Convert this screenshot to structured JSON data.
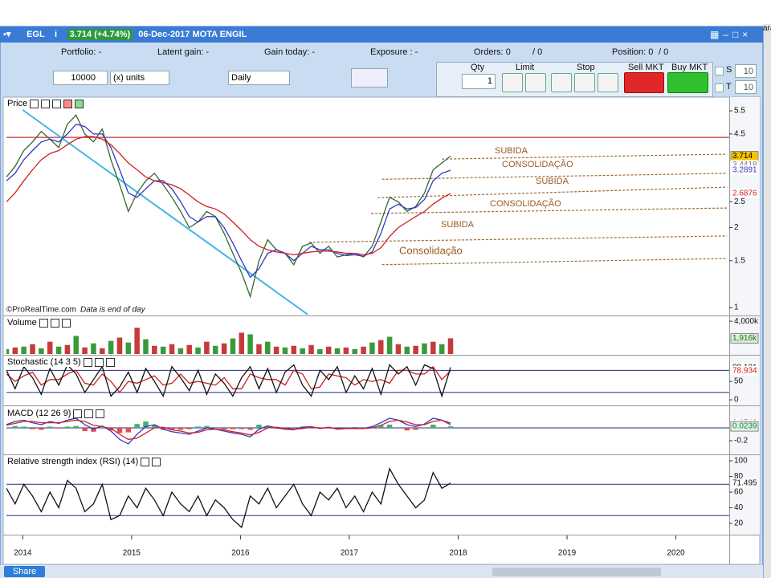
{
  "window": {
    "symbol": "EGL",
    "quote": "3.714 (+4.74%)",
    "title": "06-Dec-2017 MOTA ENGIL",
    "edge_text": "ara"
  },
  "account": {
    "portfolio": "Portfolio: -",
    "latent_gain": "Latent gain: -",
    "gain_today": "Gain today: -",
    "exposure": "Exposure : -",
    "orders": "Orders: 0",
    "orders_total": "/ 0",
    "position": "Position: 0",
    "position_total": "/ 0"
  },
  "toolbar": {
    "quantity": "10000",
    "unit": "(x) units",
    "period": "Daily",
    "qty_label": "Qty",
    "qty": "1",
    "limit": "Limit",
    "stop": "Stop",
    "sell": "Sell MKT",
    "buy": "Buy MKT",
    "s_label": "S",
    "s_value": "10",
    "t_label": "T",
    "t_value": "10"
  },
  "footer": {
    "share": "Share"
  },
  "chart_data": [
    {
      "type": "line",
      "title": "Price",
      "source": "©ProRealTime.com",
      "note": "Data is end of day",
      "log_scale": true,
      "xlim": [
        2013.85,
        2020.49
      ],
      "ylim": [
        0.94,
        6.15
      ],
      "yticks": [
        1,
        1.5,
        2,
        2.5,
        4.5,
        5.5
      ],
      "x": [
        2013.85,
        2013.93,
        2014.01,
        2014.09,
        2014.17,
        2014.25,
        2014.33,
        2014.41,
        2014.49,
        2014.57,
        2014.65,
        2014.73,
        2014.81,
        2014.89,
        2014.97,
        2015.05,
        2015.13,
        2015.21,
        2015.29,
        2015.37,
        2015.45,
        2015.53,
        2015.61,
        2015.69,
        2015.77,
        2015.85,
        2015.93,
        2016.01,
        2016.09,
        2016.17,
        2016.25,
        2016.33,
        2016.41,
        2016.49,
        2016.57,
        2016.65,
        2016.73,
        2016.81,
        2016.89,
        2016.97,
        2017.05,
        2017.13,
        2017.21,
        2017.29,
        2017.37,
        2017.45,
        2017.53,
        2017.61,
        2017.69,
        2017.77,
        2017.85,
        2017.93
      ],
      "series": [
        {
          "color": "#2e6b2e",
          "values": [
            3.1,
            3.4,
            3.9,
            4.2,
            4.6,
            4.3,
            4.0,
            4.9,
            5.3,
            4.5,
            4.2,
            4.7,
            3.6,
            2.9,
            2.3,
            2.7,
            3.0,
            3.2,
            2.9,
            2.6,
            2.3,
            2.0,
            2.1,
            2.3,
            2.2,
            1.9,
            1.6,
            1.35,
            1.1,
            1.5,
            1.8,
            1.65,
            1.6,
            1.45,
            1.7,
            1.75,
            1.6,
            1.7,
            1.55,
            1.58,
            1.6,
            1.55,
            1.7,
            2.1,
            2.6,
            2.5,
            2.3,
            2.4,
            2.7,
            3.3,
            3.5,
            3.714
          ]
        },
        {
          "color": "#3535c8",
          "values": [
            3.0,
            3.2,
            3.6,
            3.9,
            4.2,
            4.3,
            4.2,
            4.5,
            4.9,
            4.8,
            4.5,
            4.5,
            4.0,
            3.3,
            2.7,
            2.6,
            2.8,
            3.0,
            3.0,
            2.8,
            2.5,
            2.2,
            2.1,
            2.2,
            2.2,
            2.0,
            1.75,
            1.5,
            1.3,
            1.4,
            1.6,
            1.65,
            1.6,
            1.5,
            1.6,
            1.7,
            1.65,
            1.65,
            1.6,
            1.57,
            1.58,
            1.56,
            1.62,
            1.9,
            2.35,
            2.45,
            2.35,
            2.38,
            2.55,
            3.0,
            3.2,
            3.2891
          ]
        },
        {
          "color": "#d02020",
          "values": [
            2.5,
            2.7,
            3.0,
            3.3,
            3.6,
            3.8,
            3.9,
            4.1,
            4.3,
            4.4,
            4.4,
            4.3,
            4.1,
            3.8,
            3.5,
            3.3,
            3.1,
            3.0,
            2.95,
            2.9,
            2.8,
            2.65,
            2.5,
            2.4,
            2.35,
            2.25,
            2.1,
            1.95,
            1.8,
            1.7,
            1.65,
            1.62,
            1.6,
            1.58,
            1.6,
            1.62,
            1.63,
            1.63,
            1.62,
            1.6,
            1.6,
            1.58,
            1.6,
            1.68,
            1.85,
            2.0,
            2.1,
            2.2,
            2.3,
            2.45,
            2.58,
            2.6876
          ]
        }
      ],
      "hlines": [
        {
          "value": 4.37,
          "color": "#d03030"
        }
      ],
      "trendlines": [
        {
          "x": [
            2014.0,
            2016.62
          ],
          "y": [
            5.54,
            0.94
          ],
          "color": "#45b4e6",
          "style": "solid"
        },
        {
          "x": [
            2017.3,
            2020.47
          ],
          "y": [
            1.45,
            1.53
          ],
          "color": "#9a6a3a",
          "style": "dashed"
        },
        {
          "x": [
            2016.63,
            2020.47
          ],
          "y": [
            1.76,
            1.86
          ],
          "color": "#9a6a3a",
          "style": "dashed"
        },
        {
          "x": [
            2017.2,
            2020.47
          ],
          "y": [
            2.26,
            2.37
          ],
          "color": "#9a6a3a",
          "style": "dashed"
        },
        {
          "x": [
            2017.26,
            2020.47
          ],
          "y": [
            2.59,
            2.84
          ],
          "color": "#9a6a3a",
          "style": "dashed"
        },
        {
          "x": [
            2017.3,
            2020.47
          ],
          "y": [
            3.04,
            3.2
          ],
          "color": "#9a6a3a",
          "style": "dashed"
        },
        {
          "x": [
            2017.85,
            2020.47
          ],
          "y": [
            3.62,
            3.78
          ],
          "color": "#9a6a3a",
          "style": "dashed"
        }
      ],
      "annotations": [
        "SUBIDA",
        "CONSOLIDAÇÃO",
        "SUBIDA",
        "CONSOLIDAÇÃO",
        "SUBIDA",
        "Consolidação"
      ],
      "markers": [
        {
          "value": 3.714,
          "color": "#000000",
          "background": "#f5c400"
        },
        {
          "value": 3.4418,
          "color": "#777777"
        },
        {
          "value": 3.2891,
          "color": "#3535c8"
        },
        {
          "value": 2.6876,
          "color": "#d02020"
        }
      ]
    },
    {
      "type": "bar",
      "title": "Volume",
      "xlim": [
        2013.85,
        2020.49
      ],
      "ylim": [
        0,
        4500
      ],
      "yticks": [
        {
          "value": 4000,
          "label": "4,000k"
        }
      ],
      "x": [
        2013.85,
        2013.93,
        2014.01,
        2014.09,
        2014.17,
        2014.25,
        2014.33,
        2014.41,
        2014.49,
        2014.57,
        2014.65,
        2014.73,
        2014.81,
        2014.89,
        2014.97,
        2015.05,
        2015.13,
        2015.21,
        2015.29,
        2015.37,
        2015.45,
        2015.53,
        2015.61,
        2015.69,
        2015.77,
        2015.85,
        2015.93,
        2016.01,
        2016.09,
        2016.17,
        2016.25,
        2016.33,
        2016.41,
        2016.49,
        2016.57,
        2016.65,
        2016.73,
        2016.81,
        2016.89,
        2016.97,
        2017.05,
        2017.13,
        2017.21,
        2017.29,
        2017.37,
        2017.45,
        2017.53,
        2017.61,
        2017.69,
        2017.77,
        2017.85,
        2017.93
      ],
      "values": [
        600,
        800,
        900,
        1200,
        700,
        1500,
        900,
        1100,
        2200,
        800,
        1300,
        700,
        1600,
        2000,
        1400,
        3200,
        1800,
        1000,
        900,
        1200,
        700,
        1100,
        800,
        1500,
        1000,
        1300,
        1900,
        2600,
        2400,
        1200,
        1500,
        900,
        800,
        1000,
        700,
        1100,
        600,
        900,
        700,
        800,
        600,
        900,
        1400,
        1700,
        2100,
        1200,
        900,
        1000,
        1300,
        1500,
        1200,
        1916
      ],
      "colors": [
        "#3a9a3a",
        "#c83a3a"
      ],
      "markers": [
        {
          "value": 1916,
          "label": "1,916k",
          "color": "#2a6a2a",
          "background": "#d8f0d8"
        }
      ]
    },
    {
      "type": "line",
      "title": "Stochastic (14 3 5)",
      "xlim": [
        2013.85,
        2020.49
      ],
      "ylim": [
        -13,
        120
      ],
      "yticks": [
        0,
        50
      ],
      "levels": [
        20,
        80
      ],
      "x": [
        2013.85,
        2013.93,
        2014.01,
        2014.09,
        2014.17,
        2014.25,
        2014.33,
        2014.41,
        2014.49,
        2014.57,
        2014.65,
        2014.73,
        2014.81,
        2014.89,
        2014.97,
        2015.05,
        2015.13,
        2015.21,
        2015.29,
        2015.37,
        2015.45,
        2015.53,
        2015.61,
        2015.69,
        2015.77,
        2015.85,
        2015.93,
        2016.01,
        2016.09,
        2016.17,
        2016.25,
        2016.33,
        2016.41,
        2016.49,
        2016.57,
        2016.65,
        2016.73,
        2016.81,
        2016.89,
        2016.97,
        2017.05,
        2017.13,
        2017.21,
        2017.29,
        2017.37,
        2017.45,
        2017.53,
        2017.61,
        2017.69,
        2017.77,
        2017.85,
        2017.93
      ],
      "series": [
        {
          "color": "#d02020",
          "values": [
            70,
            50,
            65,
            75,
            40,
            55,
            55,
            70,
            80,
            45,
            40,
            70,
            50,
            20,
            50,
            45,
            55,
            65,
            40,
            45,
            70,
            45,
            50,
            45,
            40,
            60,
            30,
            30,
            70,
            60,
            55,
            55,
            40,
            80,
            70,
            30,
            35,
            70,
            65,
            60,
            40,
            55,
            50,
            55,
            45,
            80,
            80,
            70,
            70,
            90,
            55,
            78.934
          ]
        },
        {
          "color": "#111111",
          "values": [
            80,
            30,
            90,
            60,
            15,
            85,
            40,
            95,
            70,
            20,
            55,
            90,
            10,
            35,
            75,
            20,
            85,
            50,
            10,
            90,
            60,
            25,
            80,
            15,
            70,
            45,
            10,
            60,
            90,
            30,
            85,
            20,
            75,
            95,
            40,
            10,
            80,
            55,
            90,
            20,
            65,
            30,
            85,
            15,
            95,
            70,
            90,
            40,
            95,
            85,
            10,
            88.121
          ]
        }
      ],
      "markers": [
        {
          "value": 88.121,
          "color": "#111111"
        },
        {
          "value": 78.934,
          "color": "#d02020"
        }
      ]
    },
    {
      "type": "line",
      "title": "MACD (12 26 9)",
      "xlim": [
        2013.85,
        2020.49
      ],
      "ylim": [
        -0.4,
        0.325
      ],
      "yticks": [
        -0.2
      ],
      "levels": [
        0
      ],
      "x": [
        2013.85,
        2013.93,
        2014.01,
        2014.09,
        2014.17,
        2014.25,
        2014.33,
        2014.41,
        2014.49,
        2014.57,
        2014.65,
        2014.73,
        2014.81,
        2014.89,
        2014.97,
        2015.05,
        2015.13,
        2015.21,
        2015.29,
        2015.37,
        2015.45,
        2015.53,
        2015.61,
        2015.69,
        2015.77,
        2015.85,
        2015.93,
        2016.01,
        2016.09,
        2016.17,
        2016.25,
        2016.33,
        2016.41,
        2016.49,
        2016.57,
        2016.65,
        2016.73,
        2016.81,
        2016.89,
        2016.97,
        2017.05,
        2017.13,
        2017.21,
        2017.29,
        2017.37,
        2017.45,
        2017.53,
        2017.61,
        2017.69,
        2017.77,
        2017.85,
        2017.93
      ],
      "histogram": {
        "colors": [
          "#3cb371",
          "#e05050"
        ],
        "values": [
          0.01,
          0.03,
          0.02,
          -0.02,
          -0.03,
          0.02,
          -0.01,
          0.02,
          0.03,
          -0.05,
          -0.06,
          0.01,
          -0.04,
          -0.08,
          -0.07,
          0.06,
          0.1,
          0.05,
          -0.03,
          -0.03,
          -0.03,
          -0.02,
          0.02,
          0.03,
          0.0,
          -0.02,
          -0.02,
          -0.02,
          -0.03,
          0.05,
          0.03,
          -0.01,
          -0.01,
          -0.01,
          0.02,
          0.01,
          -0.01,
          0.01,
          -0.01,
          0.0,
          0.01,
          0.0,
          0.02,
          0.04,
          0.05,
          0.0,
          -0.04,
          -0.03,
          0.01,
          0.05,
          0.0,
          0.0239
        ]
      },
      "series": [
        {
          "color": "#3535c8",
          "values": [
            0.05,
            0.1,
            0.12,
            0.08,
            0.05,
            0.1,
            0.07,
            0.12,
            0.15,
            0.05,
            -0.02,
            0.03,
            -0.05,
            -0.18,
            -0.25,
            -0.1,
            0.02,
            0.05,
            -0.02,
            -0.06,
            -0.08,
            -0.1,
            -0.05,
            0.0,
            -0.02,
            -0.05,
            -0.08,
            -0.1,
            -0.14,
            -0.02,
            0.03,
            0.0,
            -0.02,
            -0.03,
            0.01,
            0.02,
            -0.01,
            0.01,
            -0.02,
            -0.01,
            0.0,
            -0.01,
            0.02,
            0.08,
            0.15,
            0.12,
            0.05,
            0.02,
            0.06,
            0.15,
            0.12,
            0.0743
          ]
        },
        {
          "color": "#d02020",
          "values": [
            0.04,
            0.07,
            0.1,
            0.1,
            0.08,
            0.08,
            0.08,
            0.1,
            0.12,
            0.1,
            0.04,
            0.02,
            -0.01,
            -0.1,
            -0.18,
            -0.16,
            -0.08,
            0.0,
            0.01,
            -0.03,
            -0.05,
            -0.08,
            -0.07,
            -0.03,
            -0.02,
            -0.03,
            -0.06,
            -0.08,
            -0.11,
            -0.07,
            0.0,
            0.01,
            -0.01,
            -0.02,
            -0.01,
            0.01,
            0.0,
            0.0,
            -0.01,
            -0.01,
            -0.01,
            -0.01,
            0.0,
            0.04,
            0.1,
            0.12,
            0.09,
            0.05,
            0.05,
            0.1,
            0.12,
            0.0503
          ]
        }
      ],
      "markers": [
        {
          "value": 0.0743,
          "color": "#3535c8"
        },
        {
          "value": 0.0503,
          "color": "#d02020"
        },
        {
          "value": 0.0239,
          "color": "#1f7a3f",
          "background": "#dff3e6"
        }
      ]
    },
    {
      "type": "line",
      "title": "Relative strength index (RSI) (14)",
      "xlim": [
        2013.85,
        2020.49
      ],
      "ylim": [
        6.7,
        107.2
      ],
      "yticks": [
        20,
        40,
        60,
        80,
        100
      ],
      "levels": [
        30,
        70
      ],
      "xticks": [
        2014,
        2015,
        2016,
        2017,
        2018,
        2019,
        2020
      ],
      "x": [
        2013.85,
        2013.93,
        2014.01,
        2014.09,
        2014.17,
        2014.25,
        2014.33,
        2014.41,
        2014.49,
        2014.57,
        2014.65,
        2014.73,
        2014.81,
        2014.89,
        2014.97,
        2015.05,
        2015.13,
        2015.21,
        2015.29,
        2015.37,
        2015.45,
        2015.53,
        2015.61,
        2015.69,
        2015.77,
        2015.85,
        2015.93,
        2016.01,
        2016.09,
        2016.17,
        2016.25,
        2016.33,
        2016.41,
        2016.49,
        2016.57,
        2016.65,
        2016.73,
        2016.81,
        2016.89,
        2016.97,
        2017.05,
        2017.13,
        2017.21,
        2017.29,
        2017.37,
        2017.45,
        2017.53,
        2017.61,
        2017.69,
        2017.77,
        2017.85,
        2017.93
      ],
      "series": [
        {
          "color": "#111111",
          "values": [
            65,
            45,
            70,
            55,
            35,
            60,
            40,
            75,
            65,
            35,
            45,
            70,
            25,
            30,
            55,
            40,
            65,
            50,
            30,
            60,
            45,
            35,
            55,
            30,
            50,
            40,
            25,
            15,
            55,
            45,
            65,
            40,
            55,
            70,
            45,
            30,
            60,
            50,
            65,
            40,
            55,
            35,
            60,
            45,
            90,
            70,
            55,
            40,
            50,
            85,
            65,
            71.495
          ]
        }
      ],
      "markers": [
        {
          "value": 71.495,
          "color": "#111111"
        }
      ]
    }
  ]
}
